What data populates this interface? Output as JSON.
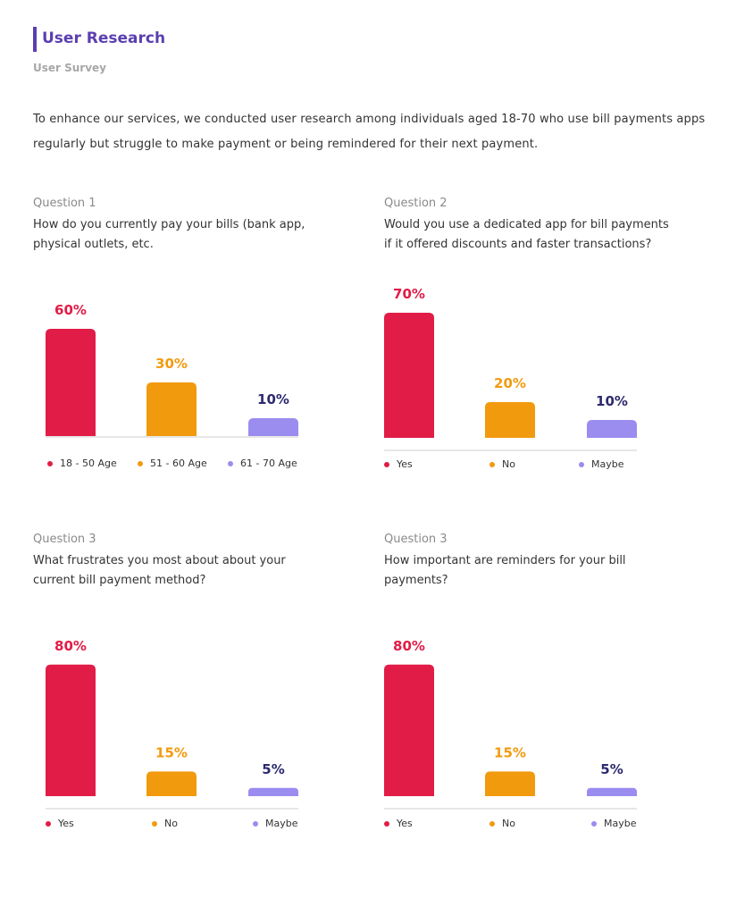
{
  "header": {
    "title": "User Research",
    "subtitle": "User Survey"
  },
  "intro": "To enhance our services, we conducted user research among individuals aged 18-70 who use bill payments apps regularly but struggle to make payment or being remindered for their next payment.",
  "colors": {
    "accent": "#5b3fb0",
    "red": "#e11c47",
    "orange": "#f29a0e",
    "purple": "#9b8cf0",
    "label_dark": "#2d2a6e"
  },
  "questions": [
    {
      "label": "Question 1",
      "text": "How do you currently pay your bills (bank app, physical outlets, etc."
    },
    {
      "label": "Question 2",
      "text": "Would you use a dedicated app for bill payments if it offered discounts and faster transactions?"
    },
    {
      "label": "Question 3",
      "text": "What frustrates you most about about your current bill payment method?"
    },
    {
      "label": "Question 3",
      "text": "How important are reminders for your bill payments?"
    }
  ],
  "chart_data": [
    {
      "type": "bar",
      "categories": [
        "18 - 50 Age",
        "51 - 60 Age",
        "61 - 70 Age"
      ],
      "values": [
        60,
        30,
        10
      ],
      "data_labels": [
        "60%",
        "30%",
        "10%"
      ],
      "legend": "bottom"
    },
    {
      "type": "bar",
      "categories": [
        "Yes",
        "No",
        "Maybe"
      ],
      "values": [
        70,
        20,
        10
      ],
      "data_labels": [
        "70%",
        "20%",
        "10%"
      ],
      "legend": "bottom"
    },
    {
      "type": "bar",
      "categories": [
        "Yes",
        "No",
        "Maybe"
      ],
      "values": [
        80,
        15,
        5
      ],
      "data_labels": [
        "80%",
        "15%",
        "5%"
      ],
      "legend": "bottom"
    },
    {
      "type": "bar",
      "categories": [
        "Yes",
        "No",
        "Maybe"
      ],
      "values": [
        80,
        15,
        5
      ],
      "data_labels": [
        "80%",
        "15%",
        "5%"
      ],
      "legend": "bottom"
    }
  ]
}
